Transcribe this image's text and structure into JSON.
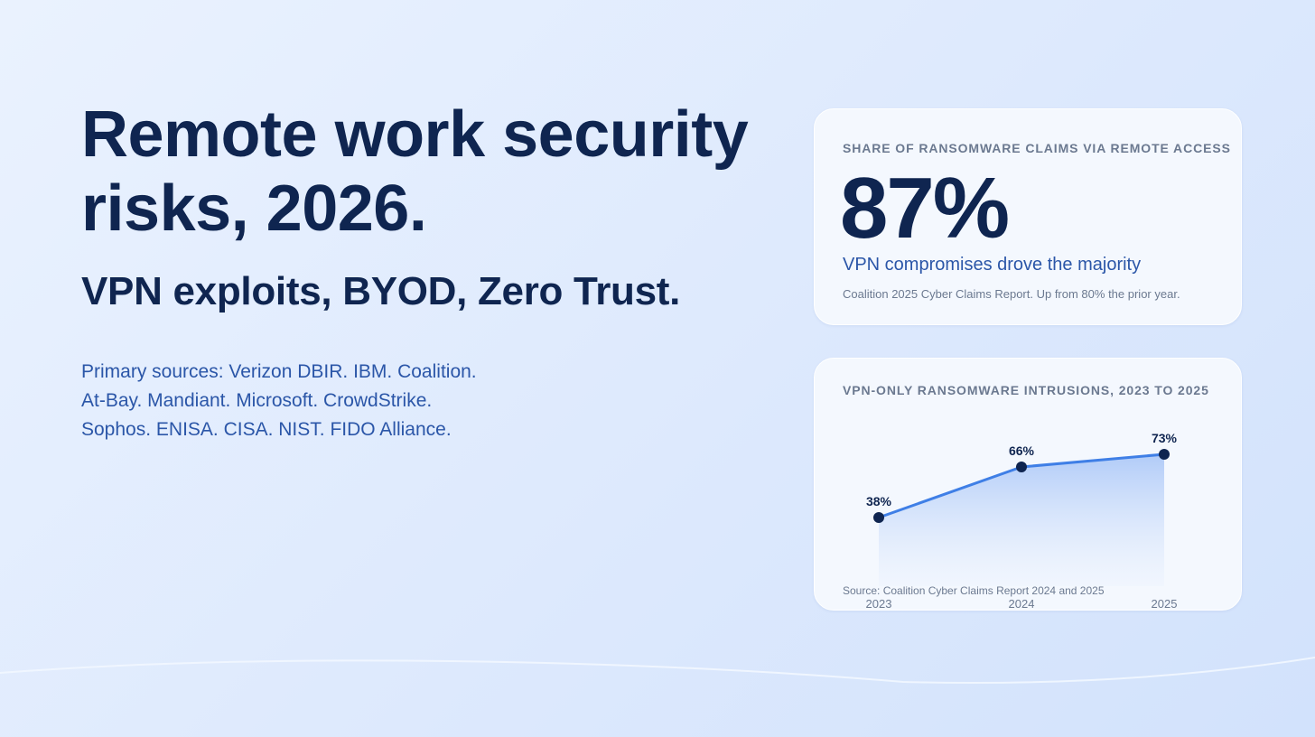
{
  "headline": "Remote work security risks, 2026.",
  "subhead": "VPN exploits, BYOD, Zero Trust.",
  "sources": [
    "Primary sources: Verizon DBIR. IBM. Coalition.",
    "At-Bay. Mandiant. Microsoft. CrowdStrike.",
    "Sophos. ENISA. CISA. NIST. FIDO Alliance."
  ],
  "stat_card": {
    "label": "SHARE OF RANSOMWARE CLAIMS VIA REMOTE ACCESS",
    "value": "87%",
    "caption": "VPN compromises drove the majority",
    "note": "Coalition 2025 Cyber Claims Report. Up from 80% the prior year."
  },
  "chart_card": {
    "label": "VPN-ONLY RANSOMWARE INTRUSIONS, 2023 TO 2025",
    "source": "Source: Coalition Cyber Claims Report 2024 and 2025"
  },
  "colors": {
    "line": "#3f7fe6",
    "point": "#0f2550",
    "area_top": "#a9c6f7",
    "area_bottom": "#e8f0fd"
  },
  "chart_data": {
    "type": "area",
    "title": "VPN-ONLY RANSOMWARE INTRUSIONS, 2023 TO 2025",
    "categories": [
      "2023",
      "2024",
      "2025"
    ],
    "values": [
      38,
      66,
      73
    ],
    "value_labels": [
      "38%",
      "66%",
      "73%"
    ],
    "unit": "%",
    "ylim": [
      0,
      100
    ],
    "grid": false,
    "legend": "none"
  }
}
